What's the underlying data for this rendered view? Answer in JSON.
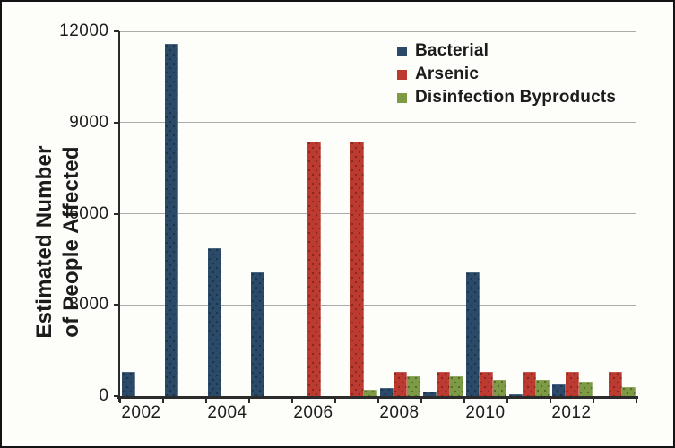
{
  "y_axis": {
    "title_line1": "Estimated Number",
    "title_line2": "of People Affected",
    "tick_labels": [
      "0",
      "3000",
      "6000",
      "9000",
      "12000"
    ]
  },
  "x_axis": {
    "tick_labels": [
      "2002",
      "2004",
      "2006",
      "2008",
      "2010",
      "2012"
    ]
  },
  "legend": {
    "items": [
      {
        "label": "Bacterial",
        "color": "#2B4A69"
      },
      {
        "label": "Arsenic",
        "color": "#BC3A30"
      },
      {
        "label": "Disinfection Byproducts",
        "color": "#7C9B44"
      }
    ]
  },
  "colors": {
    "grid": "#ABABAB",
    "axis": "#2B2B2B",
    "text": "#1C1C1C",
    "background": "#FDFDFA",
    "frame": "#141414"
  },
  "chart_data": {
    "type": "bar",
    "title": "",
    "xlabel": "",
    "ylabel": "Estimated Number of People Affected",
    "categories": [
      2002,
      2003,
      2004,
      2005,
      2006,
      2007,
      2008,
      2009,
      2010,
      2011,
      2012,
      2013
    ],
    "series": [
      {
        "name": "Bacterial",
        "color": "#2B4A69",
        "values": [
          800,
          11600,
          4880,
          4080,
          0,
          0,
          270,
          150,
          4060,
          60,
          390,
          0
        ]
      },
      {
        "name": "Arsenic",
        "color": "#BC3A30",
        "values": [
          0,
          0,
          0,
          0,
          8380,
          8380,
          800,
          800,
          800,
          800,
          800,
          800
        ]
      },
      {
        "name": "Disinfection Byproducts",
        "color": "#7C9B44",
        "values": [
          0,
          0,
          0,
          0,
          0,
          220,
          660,
          660,
          520,
          520,
          480,
          300
        ]
      }
    ],
    "ylim": [
      0,
      12000
    ],
    "ytick_step": 3000,
    "grid": true,
    "legend_position": "top-right-inside",
    "x_tick_years_shown": [
      2002,
      2004,
      2006,
      2008,
      2010,
      2012
    ]
  }
}
